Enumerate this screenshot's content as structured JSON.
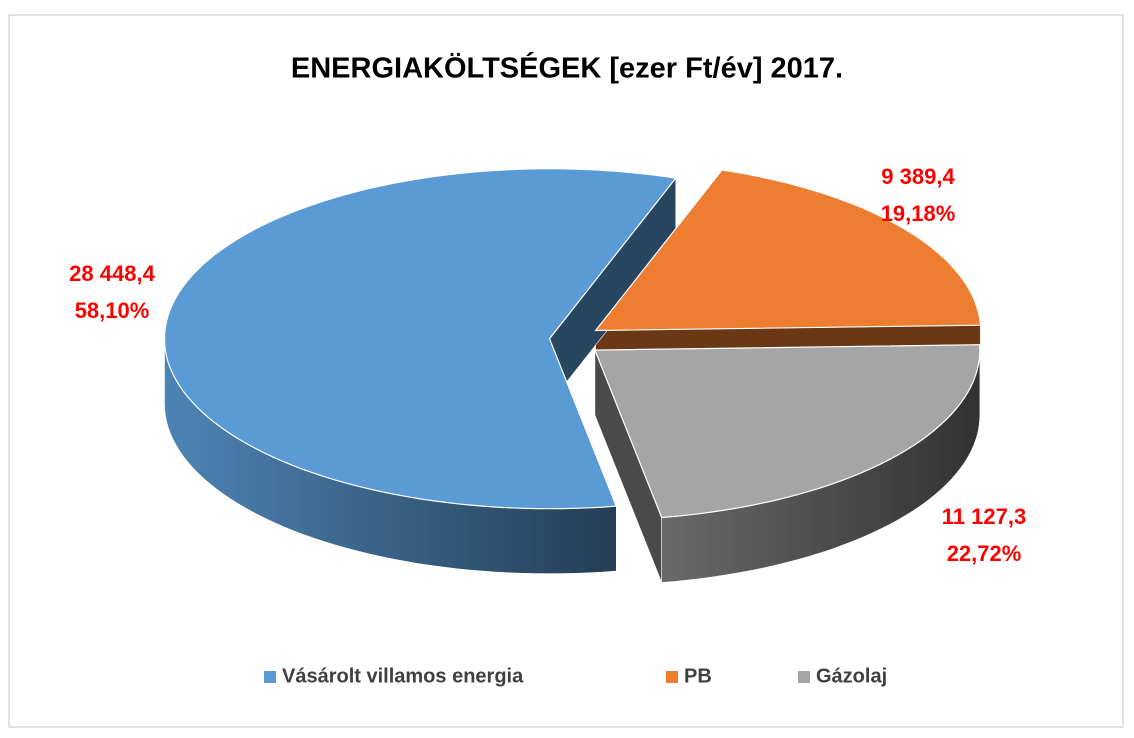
{
  "chart_data": {
    "type": "pie3d",
    "title": "ENERGIAKÖLTSÉGEK [ezer Ft/év] 2017.",
    "categories": [
      "Vásárolt villamos energia",
      "PB",
      "Gázolaj"
    ],
    "values": [
      28448.4,
      9389.4,
      11127.3
    ],
    "value_labels": [
      "28 448,4",
      "9 389,4",
      "11 127,3"
    ],
    "percents": [
      58.1,
      19.18,
      22.72
    ],
    "percent_labels": [
      "58,10%",
      "19,18%",
      "22,72%"
    ],
    "colors": [
      "#5b9bd5",
      "#ed7d31",
      "#a5a5a5"
    ],
    "legend": "bottom"
  }
}
